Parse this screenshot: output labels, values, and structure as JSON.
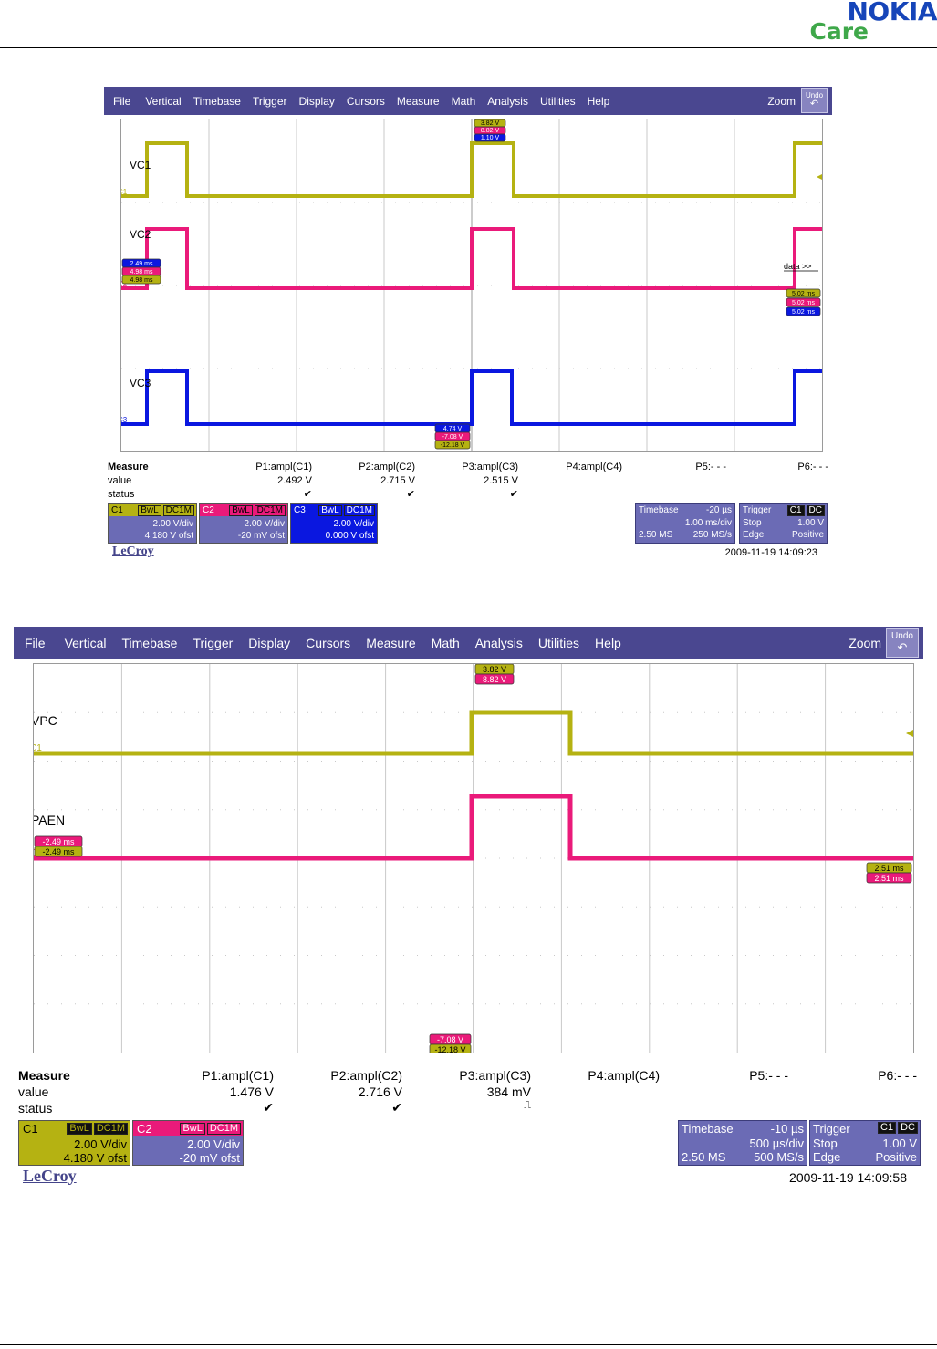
{
  "header": {
    "brand": "NOKIA",
    "sub_brand": "Care"
  },
  "colors": {
    "c1": "#b5b212",
    "c2": "#ea1a7a",
    "c3": "#0a17e0",
    "menubar": "#4a4790",
    "panel": "#6b6bb5",
    "grid": "#c8c8c8",
    "nokia_blue": "#1645b9",
    "care_green": "#3fa84a"
  },
  "scope1": {
    "menu": [
      "File",
      "Vertical",
      "Timebase",
      "Trigger",
      "Display",
      "Cursors",
      "Measure",
      "Math",
      "Analysis",
      "Utilities",
      "Help"
    ],
    "zoom": "Zoom",
    "undo": "Undo",
    "traces": [
      {
        "id": "C1",
        "label": "VC1",
        "color": "c1",
        "level_pct": [
          0.0,
          0.9,
          0.0,
          0.9,
          0.0,
          0.9
        ]
      },
      {
        "id": "C2",
        "label": "VC2",
        "color": "c2",
        "level_pct": [
          0.0,
          0.9,
          0.0,
          0.9,
          0.0,
          0.9
        ]
      },
      {
        "id": "C3",
        "label": "VC3",
        "color": "c3",
        "level_pct": [
          0.0,
          0.9,
          0.0,
          0.9,
          0.0,
          0.9
        ]
      }
    ],
    "markers": {
      "top": [
        "3.82 V",
        "8.82 V",
        "1.10 V"
      ],
      "left": [
        "2.49 ms",
        "4.98 ms",
        "4.98 ms"
      ],
      "right": [
        "5.02 ms",
        "5.02 ms",
        "5.02 ms"
      ],
      "bottom": [
        "4.74 V",
        "-7.08 V",
        "-12.18 V"
      ],
      "data_link": "data >>"
    },
    "measure": {
      "title": "Measure",
      "row_labels": [
        "value",
        "status"
      ],
      "params": [
        {
          "name": "P1:ampl(C1)",
          "value": "2.492 V",
          "status": "✔"
        },
        {
          "name": "P2:ampl(C2)",
          "value": "2.715 V",
          "status": "✔"
        },
        {
          "name": "P3:ampl(C3)",
          "value": "2.515 V",
          "status": "✔"
        },
        {
          "name": "P4:ampl(C4)",
          "value": "",
          "status": ""
        },
        {
          "name": "P5:- - -",
          "value": "",
          "status": ""
        },
        {
          "name": "P6:- - -",
          "value": "",
          "status": ""
        }
      ]
    },
    "channels": [
      {
        "name": "C1",
        "tags": [
          "BwL",
          "DC1M"
        ],
        "vdiv": "2.00 V/div",
        "offset": "4.180 V ofst",
        "color": "c1"
      },
      {
        "name": "C2",
        "tags": [
          "BwL",
          "DC1M"
        ],
        "vdiv": "2.00 V/div",
        "offset": "-20 mV ofst",
        "color": "c2"
      },
      {
        "name": "C3",
        "tags": [
          "BwL",
          "DC1M"
        ],
        "vdiv": "2.00 V/div",
        "offset": "0.000 V ofst",
        "color": "c3"
      }
    ],
    "timebase": {
      "label": "Timebase",
      "delay": "-20 µs",
      "per_div": "1.00 ms/div",
      "samples": "2.50 MS",
      "rate": "250 MS/s"
    },
    "trigger": {
      "label": "Trigger",
      "tags": [
        "C1",
        "DC"
      ],
      "mode": "Stop",
      "level": "1.00 V",
      "type": "Edge",
      "slope": "Positive"
    },
    "brand": "LeCroy",
    "timestamp": "2009-11-19 14:09:23"
  },
  "scope2": {
    "menu": [
      "File",
      "Vertical",
      "Timebase",
      "Trigger",
      "Display",
      "Cursors",
      "Measure",
      "Math",
      "Analysis",
      "Utilities",
      "Help"
    ],
    "zoom": "Zoom",
    "undo": "Undo",
    "traces": [
      {
        "id": "C1",
        "label": "VPC",
        "color": "c1"
      },
      {
        "id": "C2",
        "label": "PAEN",
        "color": "c2"
      }
    ],
    "markers": {
      "top": [
        "3.82 V",
        "8.82 V"
      ],
      "left": [
        "-2.49 ms",
        "-2.49 ms"
      ],
      "right": [
        "2.51 ms",
        "2.51 ms"
      ],
      "bottom": [
        "-7.08 V",
        "-12.18 V"
      ]
    },
    "measure": {
      "title": "Measure",
      "row_labels": [
        "value",
        "status"
      ],
      "params": [
        {
          "name": "P1:ampl(C1)",
          "value": "1.476 V",
          "status": "✔"
        },
        {
          "name": "P2:ampl(C2)",
          "value": "2.716 V",
          "status": "✔"
        },
        {
          "name": "P3:ampl(C3)",
          "value": "384 mV",
          "status": "⎍"
        },
        {
          "name": "P4:ampl(C4)",
          "value": "",
          "status": ""
        },
        {
          "name": "P5:- - -",
          "value": "",
          "status": ""
        },
        {
          "name": "P6:- - -",
          "value": "",
          "status": ""
        }
      ]
    },
    "channels": [
      {
        "name": "C1",
        "tags": [
          "BwL",
          "DC1M"
        ],
        "vdiv": "2.00 V/div",
        "offset": "4.180 V ofst",
        "color": "c1"
      },
      {
        "name": "C2",
        "tags": [
          "BwL",
          "DC1M"
        ],
        "vdiv": "2.00 V/div",
        "offset": "-20 mV ofst",
        "color": "c2"
      }
    ],
    "timebase": {
      "label": "Timebase",
      "delay": "-10 µs",
      "per_div": "500 µs/div",
      "samples": "2.50 MS",
      "rate": "500 MS/s"
    },
    "trigger": {
      "label": "Trigger",
      "tags": [
        "C1",
        "DC"
      ],
      "mode": "Stop",
      "level": "1.00 V",
      "type": "Edge",
      "slope": "Positive"
    },
    "brand": "LeCroy",
    "timestamp": "2009-11-19 14:09:58"
  }
}
